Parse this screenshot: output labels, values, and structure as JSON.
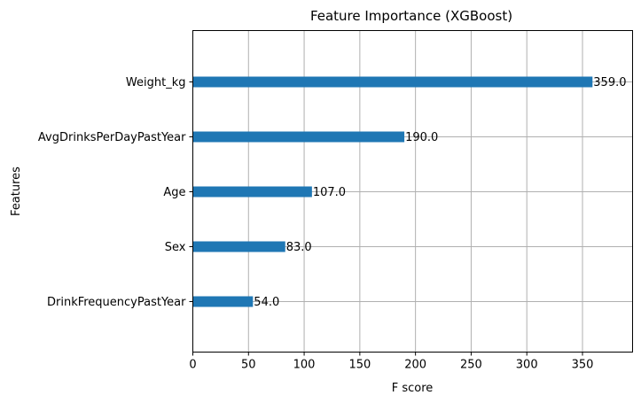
{
  "chart_data": {
    "type": "bar",
    "orientation": "horizontal",
    "title": "Feature Importance (XGBoost)",
    "xlabel": "F score",
    "ylabel": "Features",
    "categories": [
      "DrinkFrequencyPastYear",
      "Sex",
      "Age",
      "AvgDrinksPerDayPastYear",
      "Weight_kg"
    ],
    "values": [
      54.0,
      83.0,
      107.0,
      190.0,
      359.0
    ],
    "value_labels": [
      "54.0",
      "83.0",
      "107.0",
      "190.0",
      "359.0"
    ],
    "xlim": [
      0,
      395
    ],
    "xticks": [
      0,
      50,
      100,
      150,
      200,
      250,
      300,
      350
    ],
    "grid": true,
    "bar_color": "#1f77b4",
    "grid_color": "#b0b0b0"
  }
}
